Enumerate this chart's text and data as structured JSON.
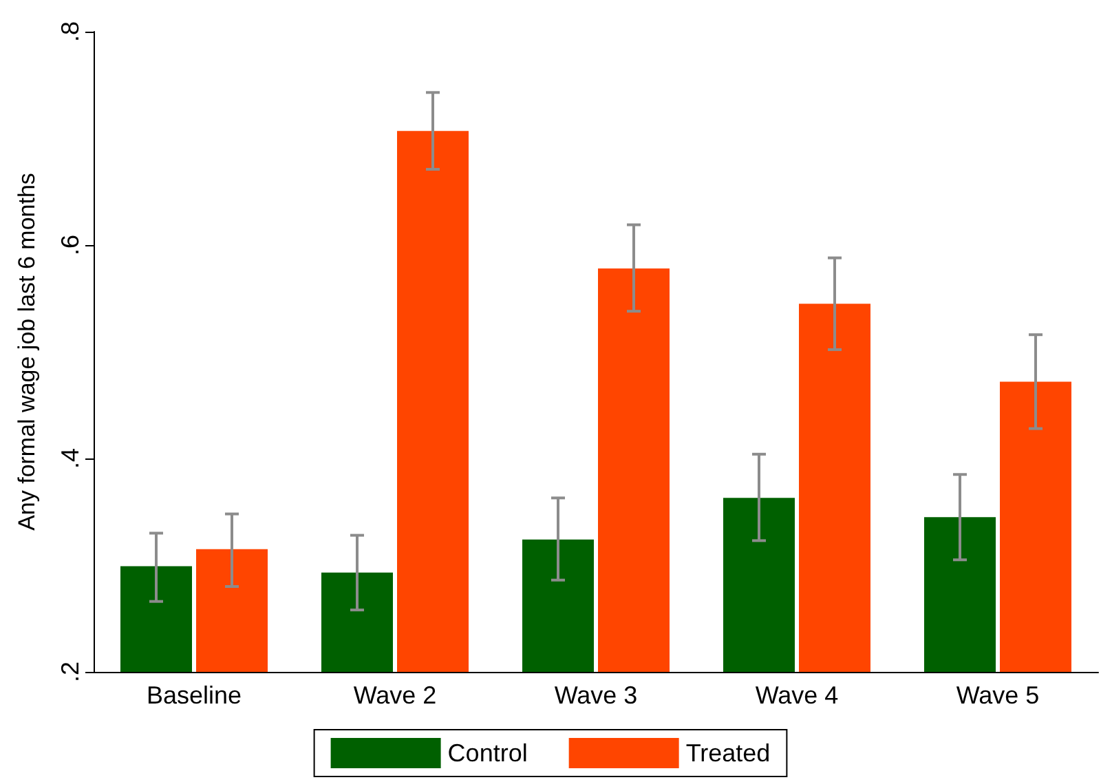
{
  "chart_data": {
    "type": "bar",
    "ylabel": "Any formal wage job last 6 months",
    "categories": [
      "Baseline",
      "Wave 2",
      "Wave 3",
      "Wave 4",
      "Wave 5"
    ],
    "series": [
      {
        "name": "Control",
        "color": "#006000",
        "values": [
          0.299,
          0.293,
          0.324,
          0.363,
          0.345
        ],
        "errors": [
          [
            0.266,
            0.33
          ],
          [
            0.258,
            0.328
          ],
          [
            0.286,
            0.363
          ],
          [
            0.323,
            0.404
          ],
          [
            0.305,
            0.385
          ]
        ]
      },
      {
        "name": "Treated",
        "color": "#ff4500",
        "values": [
          0.315,
          0.707,
          0.578,
          0.545,
          0.472
        ],
        "errors": [
          [
            0.28,
            0.348
          ],
          [
            0.671,
            0.743
          ],
          [
            0.538,
            0.619
          ],
          [
            0.502,
            0.588
          ],
          [
            0.428,
            0.516
          ]
        ]
      }
    ],
    "ylim": [
      0.2,
      0.8
    ],
    "yticks": [
      {
        "value": 0.2,
        "label": ".2"
      },
      {
        "value": 0.4,
        "label": ".4"
      },
      {
        "value": 0.6,
        "label": ".6"
      },
      {
        "value": 0.8,
        "label": ".8"
      }
    ],
    "grid": false,
    "legend": "bottom"
  }
}
